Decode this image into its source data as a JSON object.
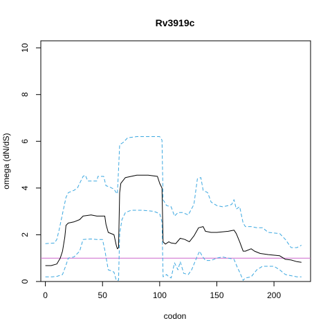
{
  "chart_data": {
    "type": "line",
    "title": "Rv3919c",
    "xlabel": "codon",
    "ylabel": "omega (dN/dS)",
    "xlim": [
      -4,
      232
    ],
    "ylim": [
      0,
      10.3
    ],
    "xticks": [
      0,
      50,
      100,
      150,
      200
    ],
    "yticks": [
      0,
      2,
      4,
      6,
      8,
      10
    ],
    "grid": false,
    "reference_line": {
      "y": 1,
      "color": "#cc66cc"
    },
    "series": [
      {
        "role": "estimate",
        "color": "#000000",
        "dashed": false,
        "points": [
          [
            0,
            0.68
          ],
          [
            5,
            0.68
          ],
          [
            10,
            0.75
          ],
          [
            13,
            1.0
          ],
          [
            15,
            1.3
          ],
          [
            17,
            1.9
          ],
          [
            18,
            2.4
          ],
          [
            20,
            2.5
          ],
          [
            25,
            2.55
          ],
          [
            30,
            2.65
          ],
          [
            33,
            2.8
          ],
          [
            40,
            2.85
          ],
          [
            45,
            2.8
          ],
          [
            52,
            2.8
          ],
          [
            53,
            2.45
          ],
          [
            55,
            2.1
          ],
          [
            60,
            2.0
          ],
          [
            62,
            1.55
          ],
          [
            63,
            1.4
          ],
          [
            64,
            1.45
          ],
          [
            65,
            3.8
          ],
          [
            66,
            4.2
          ],
          [
            70,
            4.45
          ],
          [
            75,
            4.5
          ],
          [
            80,
            4.55
          ],
          [
            90,
            4.55
          ],
          [
            98,
            4.5
          ],
          [
            100,
            4.2
          ],
          [
            102,
            4.0
          ],
          [
            103,
            1.7
          ],
          [
            105,
            1.6
          ],
          [
            108,
            1.7
          ],
          [
            110,
            1.65
          ],
          [
            114,
            1.62
          ],
          [
            118,
            1.85
          ],
          [
            122,
            1.8
          ],
          [
            126,
            1.7
          ],
          [
            130,
            1.95
          ],
          [
            134,
            2.3
          ],
          [
            138,
            2.35
          ],
          [
            140,
            2.15
          ],
          [
            145,
            2.1
          ],
          [
            150,
            2.1
          ],
          [
            160,
            2.15
          ],
          [
            165,
            2.2
          ],
          [
            167,
            2.05
          ],
          [
            170,
            1.7
          ],
          [
            173,
            1.3
          ],
          [
            175,
            1.3
          ],
          [
            180,
            1.4
          ],
          [
            183,
            1.3
          ],
          [
            188,
            1.2
          ],
          [
            195,
            1.15
          ],
          [
            205,
            1.1
          ],
          [
            210,
            0.95
          ],
          [
            215,
            0.92
          ],
          [
            220,
            0.85
          ],
          [
            224,
            0.82
          ]
        ]
      },
      {
        "role": "upper",
        "color": "#3aa7e0",
        "dashed": true,
        "points": [
          [
            0,
            1.62
          ],
          [
            8,
            1.65
          ],
          [
            10,
            1.8
          ],
          [
            12,
            2.2
          ],
          [
            15,
            2.9
          ],
          [
            18,
            3.6
          ],
          [
            20,
            3.8
          ],
          [
            25,
            3.9
          ],
          [
            28,
            4.0
          ],
          [
            33,
            4.5
          ],
          [
            35,
            4.55
          ],
          [
            37,
            4.3
          ],
          [
            45,
            4.3
          ],
          [
            46,
            4.5
          ],
          [
            51,
            4.5
          ],
          [
            53,
            4.1
          ],
          [
            56,
            4.05
          ],
          [
            60,
            3.95
          ],
          [
            62,
            3.8
          ],
          [
            63,
            3.75
          ],
          [
            64,
            4.8
          ],
          [
            65,
            5.85
          ],
          [
            68,
            5.95
          ],
          [
            72,
            6.15
          ],
          [
            80,
            6.2
          ],
          [
            90,
            6.2
          ],
          [
            100,
            6.2
          ],
          [
            102,
            6.05
          ],
          [
            103,
            3.5
          ],
          [
            106,
            3.25
          ],
          [
            110,
            3.2
          ],
          [
            113,
            2.8
          ],
          [
            116,
            2.95
          ],
          [
            120,
            2.95
          ],
          [
            125,
            2.85
          ],
          [
            130,
            3.3
          ],
          [
            133,
            4.4
          ],
          [
            136,
            4.45
          ],
          [
            138,
            3.9
          ],
          [
            142,
            3.8
          ],
          [
            145,
            3.4
          ],
          [
            150,
            3.25
          ],
          [
            155,
            3.2
          ],
          [
            160,
            3.25
          ],
          [
            163,
            3.3
          ],
          [
            165,
            3.5
          ],
          [
            167,
            3.1
          ],
          [
            170,
            3.2
          ],
          [
            173,
            2.5
          ],
          [
            175,
            2.35
          ],
          [
            180,
            2.35
          ],
          [
            185,
            2.3
          ],
          [
            190,
            2.3
          ],
          [
            195,
            2.1
          ],
          [
            205,
            2.05
          ],
          [
            210,
            1.8
          ],
          [
            215,
            1.45
          ],
          [
            220,
            1.45
          ],
          [
            224,
            1.55
          ]
        ]
      },
      {
        "role": "lower",
        "color": "#3aa7e0",
        "dashed": true,
        "points": [
          [
            0,
            0.2
          ],
          [
            6,
            0.2
          ],
          [
            10,
            0.22
          ],
          [
            15,
            0.3
          ],
          [
            18,
            0.7
          ],
          [
            20,
            1.0
          ],
          [
            25,
            1.05
          ],
          [
            30,
            1.3
          ],
          [
            33,
            1.8
          ],
          [
            40,
            1.82
          ],
          [
            45,
            1.8
          ],
          [
            50,
            1.8
          ],
          [
            52,
            1.35
          ],
          [
            55,
            0.5
          ],
          [
            58,
            0.45
          ],
          [
            60,
            0.4
          ],
          [
            62,
            0.05
          ],
          [
            64,
            0.05
          ],
          [
            65,
            2.05
          ],
          [
            67,
            2.65
          ],
          [
            70,
            2.95
          ],
          [
            75,
            3.05
          ],
          [
            85,
            3.05
          ],
          [
            95,
            3.0
          ],
          [
            100,
            2.9
          ],
          [
            102,
            2.55
          ],
          [
            103,
            0.2
          ],
          [
            106,
            0.3
          ],
          [
            108,
            0.2
          ],
          [
            110,
            0.15
          ],
          [
            113,
            0.8
          ],
          [
            116,
            0.5
          ],
          [
            118,
            0.85
          ],
          [
            121,
            0.35
          ],
          [
            125,
            0.3
          ],
          [
            128,
            0.5
          ],
          [
            133,
            1.1
          ],
          [
            135,
            1.3
          ],
          [
            137,
            1.1
          ],
          [
            140,
            0.9
          ],
          [
            145,
            0.9
          ],
          [
            150,
            1.0
          ],
          [
            155,
            1.05
          ],
          [
            160,
            1.0
          ],
          [
            165,
            0.95
          ],
          [
            168,
            0.6
          ],
          [
            170,
            0.4
          ],
          [
            173,
            0.05
          ],
          [
            175,
            0.15
          ],
          [
            180,
            0.2
          ],
          [
            185,
            0.5
          ],
          [
            190,
            0.65
          ],
          [
            200,
            0.65
          ],
          [
            205,
            0.5
          ],
          [
            210,
            0.3
          ],
          [
            215,
            0.25
          ],
          [
            220,
            0.2
          ],
          [
            224,
            0.2
          ]
        ]
      }
    ]
  }
}
